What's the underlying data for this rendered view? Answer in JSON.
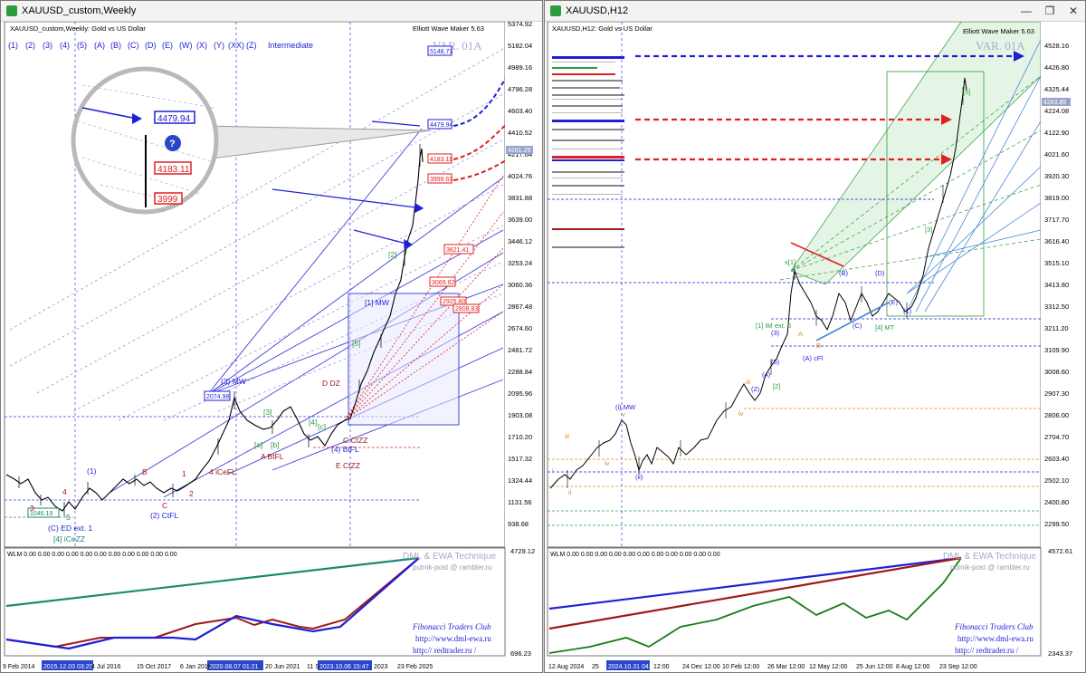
{
  "left": {
    "title": "XAUUSD_custom,Weekly",
    "chart_label": "XAUUSD_custom,Weekly:  Gold vs US Dollar",
    "tool_label": "Elliott Wave Maker 5.63",
    "var_label": "VAR. 01A",
    "wave_buttons": [
      "(1)",
      "(2)",
      "(3)",
      "(4)",
      "(5)",
      "(A)",
      "(B)",
      "(C)",
      "(D)",
      "(E)",
      "(W)",
      "(X)",
      "(Y)",
      "(XX)",
      "(Z)"
    ],
    "degree": "Intermediate",
    "y_ticks": [
      "5374.92",
      "5182.04",
      "4989.16",
      "4796.28",
      "4603.40",
      "4410.52",
      "4217.64",
      "4024.76",
      "3831.88",
      "3639.00",
      "3446.12",
      "3253.24",
      "3060.36",
      "2867.48",
      "2674.60",
      "2481.72",
      "2288.84",
      "2095.96",
      "1903.08",
      "1710.20",
      "1517.32",
      "1324.44",
      "1131.56",
      "938.68"
    ],
    "price_boxes": {
      "target_blue_top": "5148.73",
      "target_blue": "4479.94",
      "target_red1": "4183.11",
      "target_red2": "3999.63",
      "current": "4261.29",
      "red_a": "3621.41",
      "red_b": "3069.82",
      "red_c": "2925.60",
      "red_d": "2808.83",
      "low": "1046.19",
      "mw": "2074.98"
    },
    "magnifier": {
      "blue": "4479.94",
      "red1": "4183.11",
      "red2": "3999",
      "help": "?"
    },
    "wave_labels": [
      "(1)",
      "(2) CtFL",
      "(C) ED ext. 1",
      "[4] iCeZZ",
      "(3) MW",
      "4 iCeFL",
      "A BtFL",
      "(4) BtFL",
      "C CtZZ",
      "E CtZZ",
      "D DZ",
      "B",
      "C",
      "1",
      "2",
      "3",
      "4",
      "5",
      "[1] MW",
      "[2]",
      "[3]",
      "[4]",
      "[5]",
      "[a]",
      "[b]",
      "[c]"
    ],
    "x_ticks": [
      "9 Feb 2014",
      "2015.12.03 03:20",
      "4 Jul 2016",
      "15 Oct 2017",
      "6 Jan 2019",
      "2020.08.07 01:21",
      "20 Jun 2021",
      "11 S",
      "2023.10.06 15:47",
      "2023",
      "23 Feb 2025"
    ],
    "indicator": {
      "label": "WLM 0.00 0.00 0.00 0.00 0.00 0.00 0.00 0.00 0.00 0.00 0.00",
      "y_top": "4729.12",
      "y_bottom": "696.23",
      "brand": "DML & EWA Technique",
      "email": "putnik-post @ rambler.ru",
      "club": "Fibonacci   Traders   Club",
      "url1": "http://www.dml-ewa.ru",
      "url2": "http://  redtrader.ru /"
    }
  },
  "right": {
    "title": "XAUUSD,H12",
    "chart_label": "XAUUSD,H12:  Gold vs US Dollar",
    "tool_label": "Elliott Wave Maker 5.63",
    "var_label": "VAR. 01A",
    "y_ticks": [
      "4528.16",
      "4426.80",
      "4325.44",
      "4224.08",
      "4122.90",
      "4021.60",
      "3920.30",
      "3819.00",
      "3717.70",
      "3616.40",
      "3515.10",
      "3413.80",
      "3312.50",
      "3211.20",
      "3109.90",
      "3008.60",
      "2907.30",
      "2806.00",
      "2704.70",
      "2603.40",
      "2502.10",
      "2400.80",
      "2299.50"
    ],
    "current": "4263.85",
    "wave_labels": [
      "(i) MW",
      "(ii)",
      "iii",
      "iv",
      "v",
      "i",
      "ii",
      "iii",
      "iv",
      "[1] IM ext. 5",
      "[2]",
      "[3]",
      "[4] MT",
      "[5]",
      "(A) cFl",
      "(B)",
      "(C)",
      "(D)",
      "(E)",
      "(1)",
      "(2)",
      "(3)",
      "(4)",
      "(5)",
      "x[1]",
      "A",
      "B"
    ],
    "x_ticks": [
      "12 Aug 2024",
      "25",
      "2024.10.31 04:05",
      "12:00",
      "24 Dec 12:00",
      "10 Feb 12:00",
      "26 Mar 12:00",
      "12 May 12:00",
      "25 Jun 12:00",
      "8 Aug 12:00",
      "23 Sep 12:00"
    ],
    "indicator": {
      "label": "WLM 0.00 0.00 0.00 0.00 0.00 0.00 0.00 0.00 0.00 0.00 0.00",
      "y_top": "4572.61",
      "y_bottom": "2343.37",
      "brand": "DML & EWA Technique",
      "email": "putnik-post @ rambler.ru",
      "club": "Fibonacci   Traders   Club",
      "url1": "http://www.dml-ewa.ru",
      "url2": "http://  redtrader.ru /"
    }
  },
  "colors": {
    "blue": "#1f1fd6",
    "red": "#e02020",
    "green": "#2e9b3e",
    "teal": "#1a8a6e",
    "darkred": "#a01818"
  }
}
